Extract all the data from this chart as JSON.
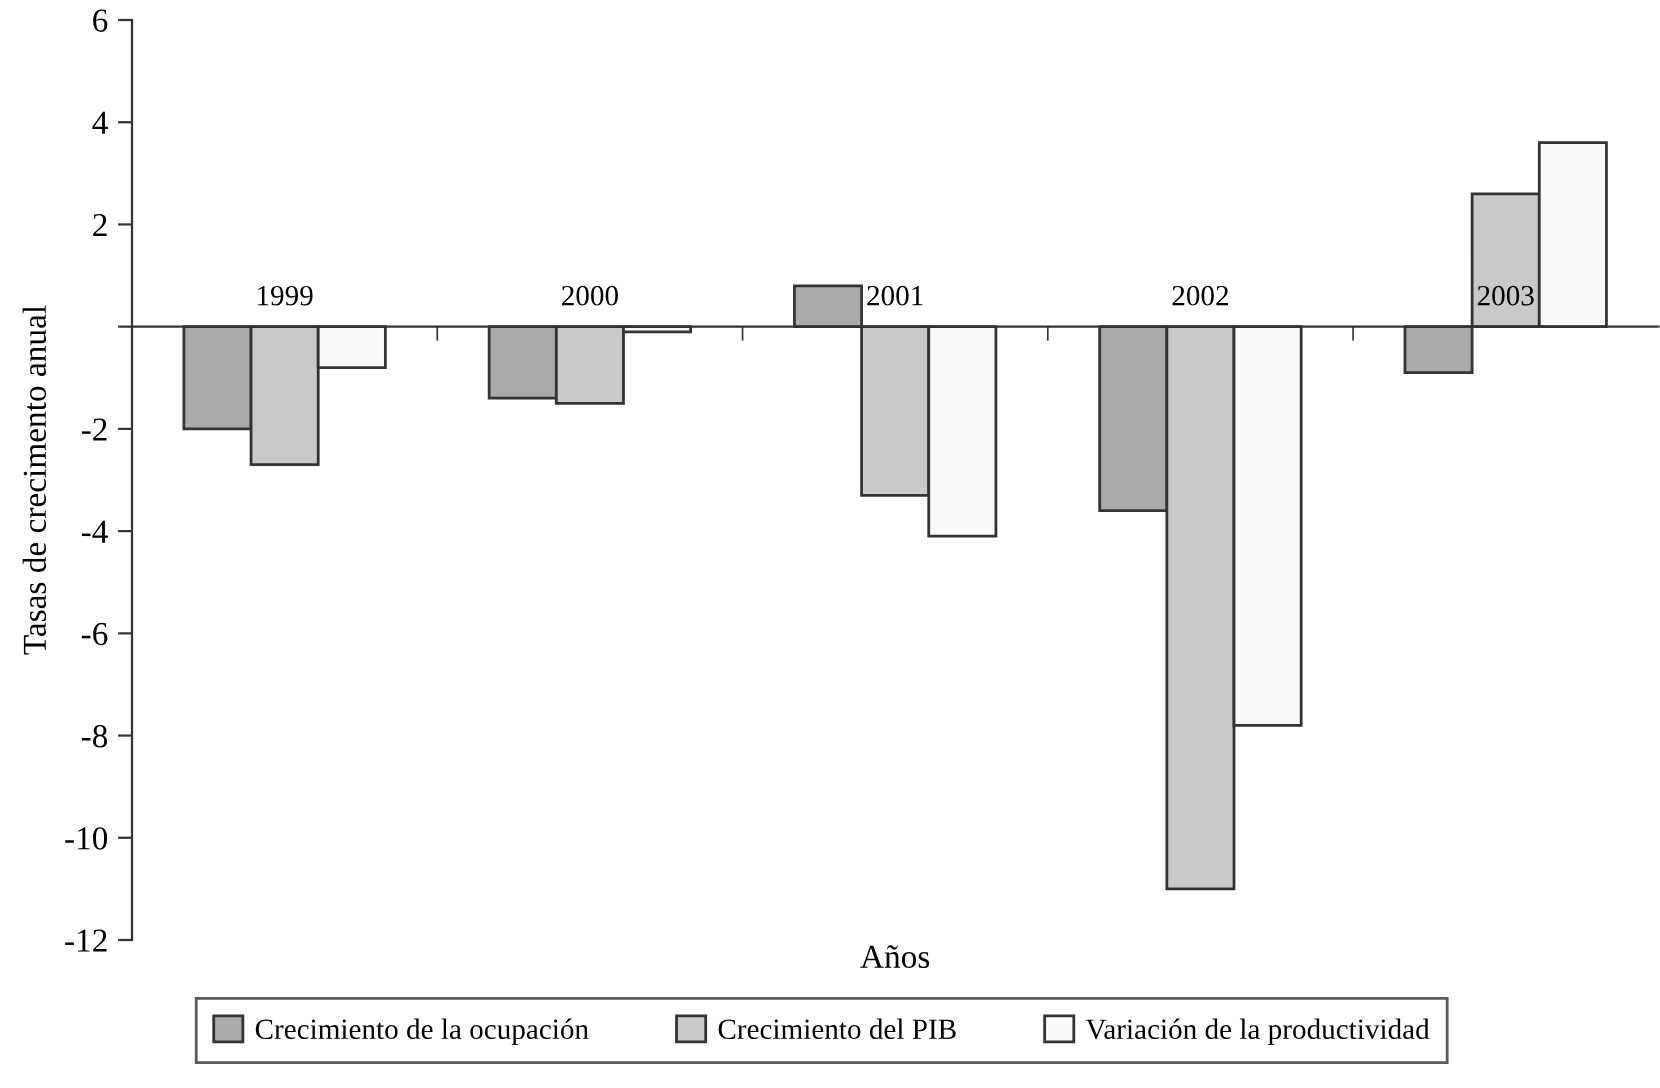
{
  "chart_data": {
    "type": "bar",
    "xlabel": "Años",
    "ylabel": "Tasas de crecimento anual",
    "categories": [
      "1999",
      "2000",
      "2001",
      "2002",
      "2003"
    ],
    "series": [
      {
        "name": "Crecimiento de la ocupación",
        "color": "#a9aaac",
        "values": [
          -2.0,
          -1.4,
          0.8,
          -3.6,
          -0.9
        ]
      },
      {
        "name": "Crecimiento del PIB",
        "color": "#c8c9cb",
        "values": [
          -2.7,
          -1.5,
          -3.3,
          -11.0,
          2.6
        ]
      },
      {
        "name": "Variación de la productividad",
        "color": "#f8f8f8",
        "values": [
          -0.8,
          -0.1,
          -4.1,
          -7.8,
          3.6
        ]
      }
    ],
    "ylim": [
      -12,
      6
    ],
    "yticks": [
      6,
      4,
      2,
      {
        "value": 0,
        "label": null
      },
      -2,
      -4,
      -6,
      -8,
      -10,
      -12
    ],
    "grid": false,
    "legend": "bottom"
  }
}
